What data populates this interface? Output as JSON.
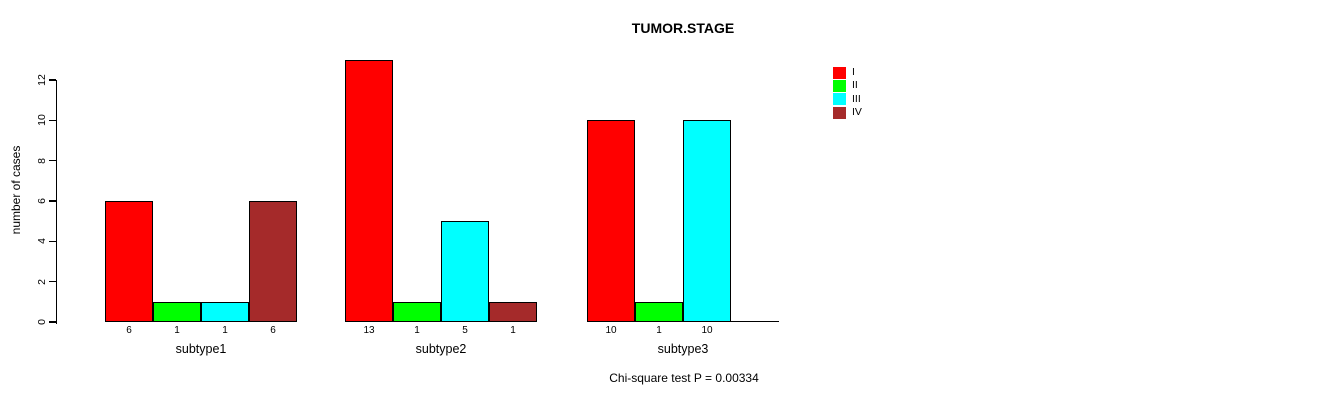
{
  "figure": {
    "title": "TUMOR.STAGE",
    "footnote": "Chi-square test P = 0.00334"
  },
  "chart_data": {
    "type": "bar",
    "title": "TUMOR.STAGE",
    "xlabel": "",
    "ylabel": "number of cases",
    "ylim": [
      0,
      13.5
    ],
    "yticks": [
      0,
      2,
      4,
      6,
      8,
      10,
      12
    ],
    "grid": false,
    "legend_position": "top-right",
    "bar_value_labels": true,
    "categories": [
      "subtype1",
      "subtype2",
      "subtype3"
    ],
    "series": [
      {
        "name": "I",
        "color": "#FF0000",
        "values": [
          6,
          13,
          10
        ]
      },
      {
        "name": "II",
        "color": "#00FF00",
        "values": [
          1,
          1,
          1
        ]
      },
      {
        "name": "III",
        "color": "#00FFFF",
        "values": [
          1,
          5,
          10
        ]
      },
      {
        "name": "IV",
        "color": "#A52A2A",
        "values": [
          6,
          1,
          0
        ]
      }
    ],
    "annotation": "Chi-square test P = 0.00334"
  }
}
